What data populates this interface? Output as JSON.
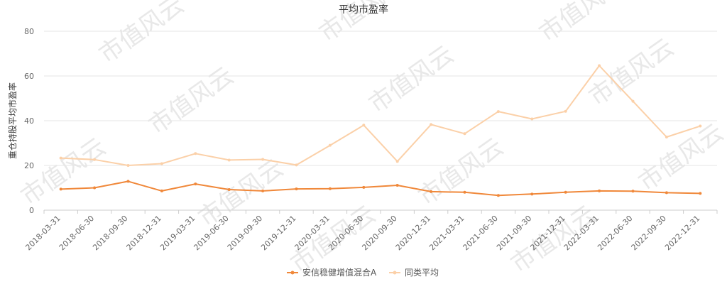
{
  "watermark": "市值风云",
  "chart_data": {
    "type": "line",
    "title": "平均市盈率",
    "xlabel": "",
    "ylabel": "重仓持股平均市盈率",
    "ylim": [
      0,
      80
    ],
    "yticks": [
      0,
      20,
      40,
      60,
      80
    ],
    "grid": true,
    "legend_position": "bottom",
    "x": [
      "2018-03-31",
      "2018-06-30",
      "2018-09-30",
      "2018-12-31",
      "2019-03-31",
      "2019-06-30",
      "2019-09-30",
      "2019-12-31",
      "2020-03-31",
      "2020-06-30",
      "2020-09-30",
      "2020-12-31",
      "2021-03-31",
      "2021-06-30",
      "2021-09-30",
      "2021-12-31",
      "2022-03-31",
      "2022-06-30",
      "2022-09-30",
      "2022-12-31"
    ],
    "series": [
      {
        "name": "安信稳健增值混合A",
        "color": "#f0883a",
        "values": [
          9.4,
          10.0,
          12.9,
          8.6,
          11.7,
          9.2,
          8.6,
          9.5,
          9.6,
          10.2,
          11.1,
          8.3,
          8.0,
          6.6,
          7.2,
          8.0,
          8.6,
          8.5,
          7.8,
          7.5
        ]
      },
      {
        "name": "同类平均",
        "color": "#fbd0a8",
        "values": [
          23.3,
          22.6,
          20.0,
          20.8,
          25.3,
          22.4,
          22.7,
          20.2,
          29.0,
          38.0,
          21.8,
          38.3,
          34.2,
          44.1,
          40.8,
          44.2,
          64.6,
          48.7,
          32.7,
          37.6
        ]
      }
    ]
  }
}
